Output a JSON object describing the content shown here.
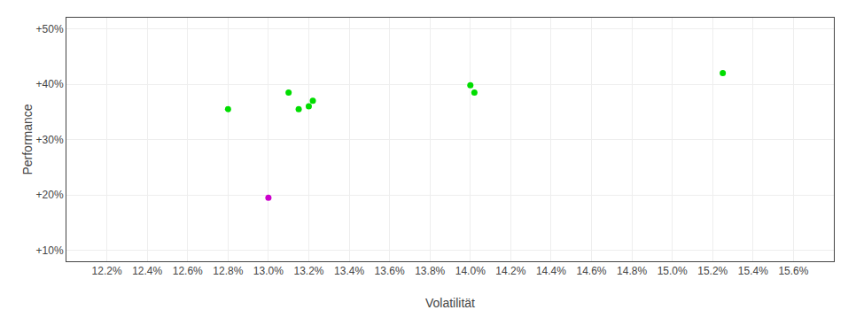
{
  "chart_data": {
    "type": "scatter",
    "xlabel": "Volatilität",
    "ylabel": "Performance",
    "xlim": [
      12.0,
      15.8
    ],
    "ylim": [
      8,
      52
    ],
    "xticks": [
      {
        "value": 12.2,
        "label": "12.2%"
      },
      {
        "value": 12.4,
        "label": "12.4%"
      },
      {
        "value": 12.6,
        "label": "12.6%"
      },
      {
        "value": 12.8,
        "label": "12.8%"
      },
      {
        "value": 13.0,
        "label": "13.0%"
      },
      {
        "value": 13.2,
        "label": "13.2%"
      },
      {
        "value": 13.4,
        "label": "13.4%"
      },
      {
        "value": 13.6,
        "label": "13.6%"
      },
      {
        "value": 13.8,
        "label": "13.8%"
      },
      {
        "value": 14.0,
        "label": "14.0%"
      },
      {
        "value": 14.2,
        "label": "14.2%"
      },
      {
        "value": 14.4,
        "label": "14.4%"
      },
      {
        "value": 14.6,
        "label": "14.6%"
      },
      {
        "value": 14.8,
        "label": "14.8%"
      },
      {
        "value": 15.0,
        "label": "15.0%"
      },
      {
        "value": 15.2,
        "label": "15.2%"
      },
      {
        "value": 15.4,
        "label": "15.4%"
      },
      {
        "value": 15.6,
        "label": "15.6%"
      }
    ],
    "yticks": [
      {
        "value": 10,
        "label": "+10%"
      },
      {
        "value": 20,
        "label": "+20%"
      },
      {
        "value": 30,
        "label": "+30%"
      },
      {
        "value": 40,
        "label": "+40%"
      },
      {
        "value": 50,
        "label": "+50%"
      }
    ],
    "grid": true,
    "marker": "circle",
    "series": [
      {
        "color": "#00dd00",
        "x": [
          12.8,
          13.1,
          13.15,
          13.2,
          13.22,
          14.0,
          14.02,
          15.25
        ],
        "values": [
          35.5,
          38.5,
          35.5,
          36.0,
          37.0,
          39.8,
          38.5,
          42.0
        ]
      },
      {
        "color": "#cc00cc",
        "x": [
          13.0
        ],
        "values": [
          19.5
        ]
      }
    ]
  }
}
